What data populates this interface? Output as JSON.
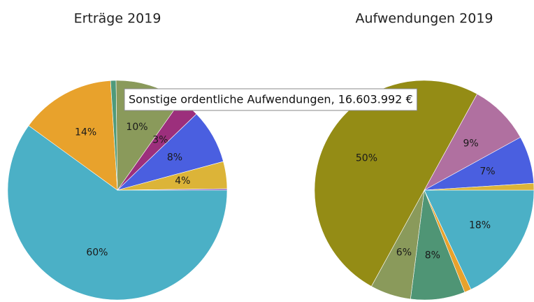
{
  "chart_data": [
    {
      "type": "pie",
      "title": "Erträge 2019",
      "values": [
        60,
        14,
        0.8,
        10,
        3,
        8,
        4,
        0.2
      ],
      "value_labels": [
        "60%",
        "14%",
        null,
        "10%",
        "3%",
        "8%",
        "4%",
        null
      ],
      "colors": [
        "#4bb0c6",
        "#e8a22c",
        "#4f9a7a",
        "#8a9a5b",
        "#9c2f7c",
        "#4a5fe0",
        "#dcb438",
        "#7b4bb5"
      ]
    },
    {
      "type": "pie",
      "title": "Aufwendungen 2019",
      "values": [
        18,
        1,
        8,
        6,
        50,
        9,
        7,
        1
      ],
      "value_labels": [
        "18%",
        null,
        "8%",
        "6%",
        "50%",
        "9%",
        "7%",
        null
      ],
      "colors": [
        "#4bb0c6",
        "#e8a22c",
        "#4f9575",
        "#8a9a5b",
        "#948c15",
        "#b070a0",
        "#4a5fe0",
        "#dcb438"
      ],
      "tooltip": "Sonstige ordentliche Aufwendungen, 16.603.992 €"
    }
  ]
}
